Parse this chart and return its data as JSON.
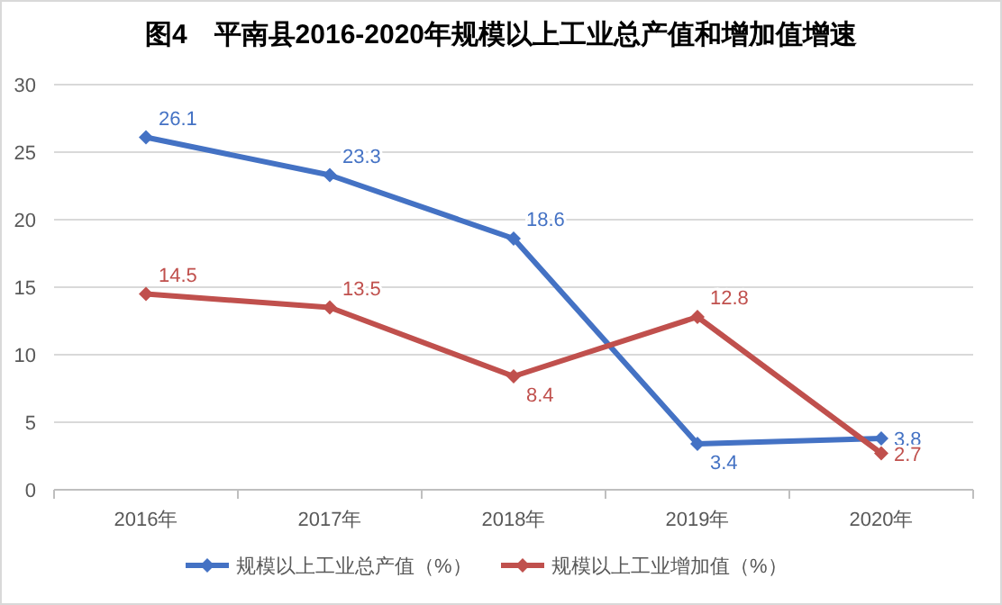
{
  "chart_data": {
    "type": "line",
    "title": "图4　平南县2016-2020年规模以上工业总产值和增加值增速",
    "categories": [
      "2016年",
      "2017年",
      "2018年",
      "2019年",
      "2020年"
    ],
    "series": [
      {
        "name": "规模以上工业总产值（%）",
        "color": "#4472c4",
        "values": [
          26.1,
          23.3,
          18.6,
          3.4,
          3.8
        ]
      },
      {
        "name": "规模以上工业增加值（%）",
        "color": "#c0504d",
        "values": [
          14.5,
          13.5,
          8.4,
          12.8,
          2.7
        ]
      }
    ],
    "ylim": [
      0,
      30
    ],
    "yticks": [
      0,
      5,
      10,
      15,
      20,
      25,
      30
    ],
    "grid": "y",
    "legend": "bottom",
    "marker": "diamond",
    "line_style": "solid",
    "data_labels": true
  }
}
